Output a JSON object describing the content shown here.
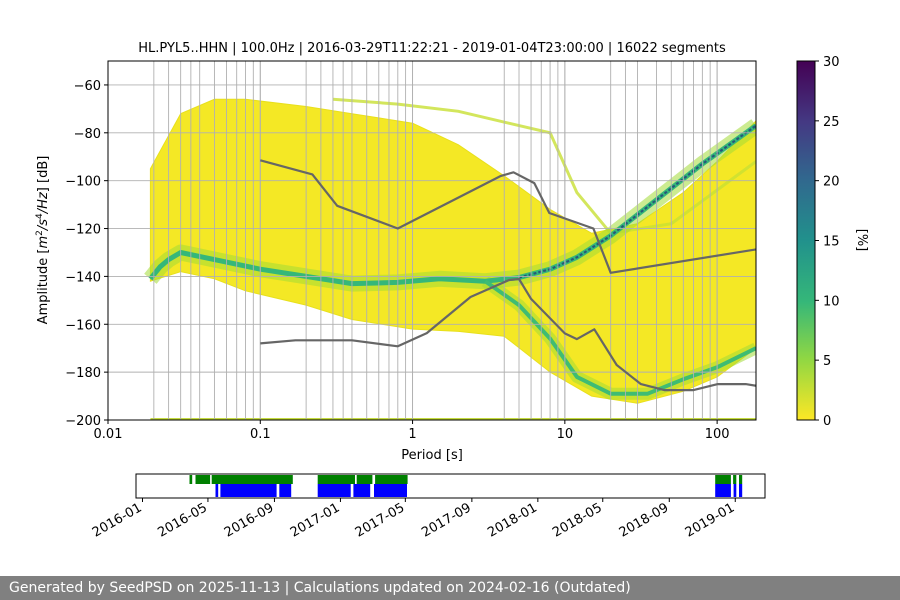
{
  "chart_data": [
    {
      "type": "heatmap",
      "title": "HL.PYL5..HHN | 100.0Hz | 2016-03-29T11:22:21 - 2019-01-04T23:00:00 | 16022 segments",
      "xlabel": "Period [s]",
      "ylabel_parts": [
        "Amplitude [",
        "m",
        "2",
        "/",
        "s",
        "4",
        "/",
        "Hz",
        "] [dB]"
      ],
      "x_scale": "log",
      "xlim": [
        0.01,
        180
      ],
      "ylim": [
        -200,
        -50
      ],
      "x_ticks": [
        {
          "value": 0.01,
          "label": "0.01"
        },
        {
          "value": 0.1,
          "label": "0.1"
        },
        {
          "value": 1,
          "label": "1"
        },
        {
          "value": 10,
          "label": "10"
        },
        {
          "value": 100,
          "label": "100"
        }
      ],
      "y_ticks": [
        {
          "value": -60,
          "label": "−60"
        },
        {
          "value": -80,
          "label": "−80"
        },
        {
          "value": -100,
          "label": "−100"
        },
        {
          "value": -120,
          "label": "−120"
        },
        {
          "value": -140,
          "label": "−140"
        },
        {
          "value": -160,
          "label": "−160"
        },
        {
          "value": -180,
          "label": "−180"
        },
        {
          "value": -200,
          "label": "−200"
        }
      ],
      "grid": true,
      "colormap": "viridis_r",
      "colorbar": {
        "label": "[%]",
        "range": [
          0,
          30
        ],
        "ticks": [
          {
            "value": 0,
            "label": "0"
          },
          {
            "value": 5,
            "label": "5"
          },
          {
            "value": 10,
            "label": "10"
          },
          {
            "value": 15,
            "label": "15"
          },
          {
            "value": 20,
            "label": "20"
          },
          {
            "value": 25,
            "label": "25"
          },
          {
            "value": 30,
            "label": "30"
          }
        ]
      },
      "density_outer_band": {
        "x": [
          0.019,
          0.03,
          0.05,
          0.08,
          0.2,
          0.4,
          1,
          2,
          4,
          8,
          15,
          30,
          60,
          100,
          180
        ],
        "upper": [
          -95,
          -72,
          -66,
          -66,
          -69,
          -72,
          -76,
          -85,
          -98,
          -112,
          -122,
          -118,
          -105,
          -92,
          -75
        ],
        "lower": [
          -142,
          -138,
          -141,
          -146,
          -152,
          -158,
          -162,
          -163,
          -165,
          -180,
          -190,
          -193,
          -188,
          -182,
          -170
        ]
      },
      "density_mode": {
        "x": [
          0.019,
          0.022,
          0.025,
          0.03,
          0.05,
          0.1,
          0.2,
          0.4,
          0.8,
          1.5,
          3,
          5,
          8,
          12,
          20,
          40,
          80,
          120,
          180
        ],
        "y": [
          -141,
          -136,
          -133,
          -130,
          -133,
          -137,
          -140,
          -143,
          -142.5,
          -141,
          -142,
          -140.5,
          -137,
          -132,
          -123,
          -108,
          -93,
          -85,
          -77
        ]
      },
      "density_mode_low": {
        "x": [
          3,
          5,
          8,
          12,
          20,
          35,
          60,
          100,
          180
        ],
        "y": [
          -142,
          -152,
          -166,
          -182,
          -189,
          -189,
          -183,
          -178,
          -170
        ]
      },
      "density_upper_ridge": {
        "x": [
          0.3,
          0.8,
          2,
          5,
          8,
          12,
          20,
          50,
          180
        ],
        "y": [
          -66,
          -68,
          -71,
          -77,
          -80,
          -105,
          -122,
          -118,
          -92
        ]
      },
      "reference_curves": [
        {
          "x": [
            0.1,
            0.22,
            0.32,
            0.8,
            3.8,
            4.6,
            6.3,
            7.9,
            15.4,
            20,
            180
          ],
          "y": [
            -91.5,
            -97.4,
            -110.5,
            -120,
            -98,
            -96.5,
            -101,
            -113.5,
            -120,
            -138.5,
            -128.7
          ]
        },
        {
          "x": [
            0.1,
            0.17,
            0.4,
            0.8,
            1.24,
            2.4,
            4.3,
            5,
            6,
            10,
            12,
            15.6,
            21.9,
            31.6,
            45,
            70,
            101,
            154,
            180
          ],
          "y": [
            -168,
            -166.7,
            -166.7,
            -169.2,
            -163.7,
            -148.6,
            -141.5,
            -141.1,
            -149.4,
            -163.8,
            -166.2,
            -162.1,
            -177,
            -185,
            -187.5,
            -187.5,
            -185,
            -185,
            -185.7
          ]
        }
      ],
      "vertical_lines_x": [
        0.02,
        0.025,
        0.03,
        0.035,
        0.04,
        0.05,
        0.06,
        0.07,
        0.08,
        0.09,
        0.1,
        0.2,
        0.25,
        0.3,
        0.35,
        0.4,
        0.5,
        0.6,
        0.7,
        0.8,
        0.9,
        1,
        4,
        5,
        6,
        7,
        8,
        9,
        10,
        20,
        25,
        30,
        40,
        50,
        60,
        70,
        80,
        90,
        100
      ]
    },
    {
      "type": "timeline",
      "x_range": [
        "2015-12-20",
        "2019-02-25"
      ],
      "x_ticks": [
        {
          "date": "2016-01",
          "label": "2016-01"
        },
        {
          "date": "2016-05",
          "label": "2016-05"
        },
        {
          "date": "2016-09",
          "label": "2016-09"
        },
        {
          "date": "2017-01",
          "label": "2017-01"
        },
        {
          "date": "2017-05",
          "label": "2017-05"
        },
        {
          "date": "2017-09",
          "label": "2017-09"
        },
        {
          "date": "2018-01",
          "label": "2018-01"
        },
        {
          "date": "2018-05",
          "label": "2018-05"
        },
        {
          "date": "2018-09",
          "label": "2018-09"
        },
        {
          "date": "2019-01",
          "label": "2019-01"
        }
      ],
      "series": [
        {
          "color": "#008000",
          "intervals": [
            [
              "2016-03-28",
              "2016-04-02"
            ],
            [
              "2016-04-08",
              "2016-05-05"
            ],
            [
              "2016-05-08",
              "2016-10-05"
            ],
            [
              "2016-11-20",
              "2017-01-28"
            ],
            [
              "2017-01-31",
              "2017-03-01"
            ],
            [
              "2017-03-06",
              "2017-05-05"
            ],
            [
              "2018-11-25",
              "2018-12-24"
            ],
            [
              "2018-12-28",
              "2019-01-03"
            ],
            [
              "2019-01-08",
              "2019-01-14"
            ]
          ]
        },
        {
          "color": "#0000ff",
          "intervals": [
            [
              "2016-05-15",
              "2016-05-20"
            ],
            [
              "2016-05-24",
              "2016-09-05"
            ],
            [
              "2016-09-10",
              "2016-10-02"
            ],
            [
              "2016-11-20",
              "2017-01-20"
            ],
            [
              "2017-01-25",
              "2017-02-25"
            ],
            [
              "2017-03-04",
              "2017-05-04"
            ],
            [
              "2018-11-25",
              "2018-12-24"
            ],
            [
              "2018-12-29",
              "2019-01-03"
            ],
            [
              "2019-01-08",
              "2019-01-14"
            ]
          ]
        }
      ]
    }
  ],
  "footer": {
    "text": "Generated by SeedPSD on 2025-11-13 | Calculations updated on 2024-02-16 (Outdated)"
  }
}
